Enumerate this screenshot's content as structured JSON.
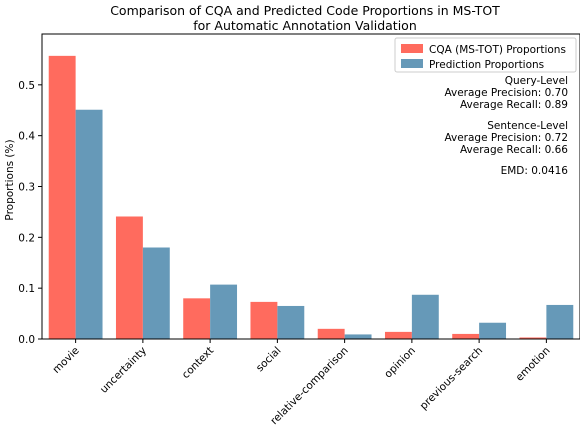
{
  "chart_data": {
    "type": "bar",
    "title": "Comparison of CQA and Predicted Code Proportions in MS-TOT",
    "subtitle": "for Automatic Annotation Validation",
    "xlabel": "",
    "ylabel": "Proportions (%)",
    "ylim": [
      0,
      0.6
    ],
    "yticks": [
      0.0,
      0.1,
      0.2,
      0.3,
      0.4,
      0.5
    ],
    "ytick_labels": [
      "0.0",
      "0.1",
      "0.2",
      "0.3",
      "0.4",
      "0.5"
    ],
    "categories": [
      "movie",
      "uncertainty",
      "context",
      "social",
      "relative-comparison",
      "opinion",
      "previous-search",
      "emotion"
    ],
    "series": [
      {
        "name": "CQA (MS-TOT) Proportions",
        "color": "#ff6b5e",
        "values": [
          0.557,
          0.241,
          0.08,
          0.073,
          0.02,
          0.014,
          0.01,
          0.003
        ]
      },
      {
        "name": "Prediction Proportions",
        "color": "#6699b8",
        "values": [
          0.451,
          0.18,
          0.107,
          0.065,
          0.009,
          0.087,
          0.032,
          0.067
        ]
      }
    ],
    "legend_position": "top-right",
    "grid": false,
    "annotations": [
      "Query-Level",
      "Average Precision: 0.70",
      "Average Recall: 0.89",
      "",
      "Sentence-Level",
      "Average Precision: 0.72",
      "Average Recall: 0.66",
      "",
      "EMD: 0.0416"
    ]
  }
}
